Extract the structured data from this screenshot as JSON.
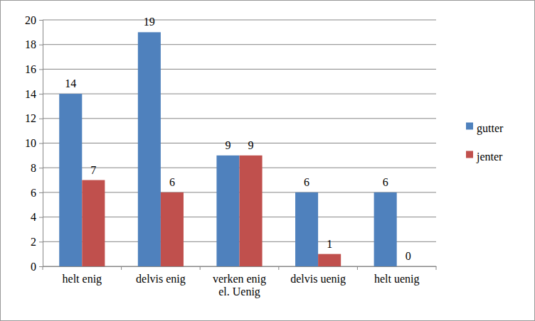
{
  "chart_data": {
    "type": "bar",
    "categories": [
      "helt enig",
      "delvis enig",
      "verken enig el. Uenig",
      "delvis uenig",
      "helt uenig"
    ],
    "series": [
      {
        "name": "gutter",
        "color": "#4f81bd",
        "values": [
          14,
          19,
          9,
          6,
          6
        ]
      },
      {
        "name": "jenter",
        "color": "#c0504d",
        "values": [
          7,
          6,
          9,
          1,
          0
        ]
      }
    ],
    "ylim": [
      0,
      20
    ],
    "yticks": [
      0,
      2,
      4,
      6,
      8,
      10,
      12,
      14,
      16,
      18,
      20
    ],
    "grid": true,
    "data_labels": true,
    "legend": "right"
  }
}
